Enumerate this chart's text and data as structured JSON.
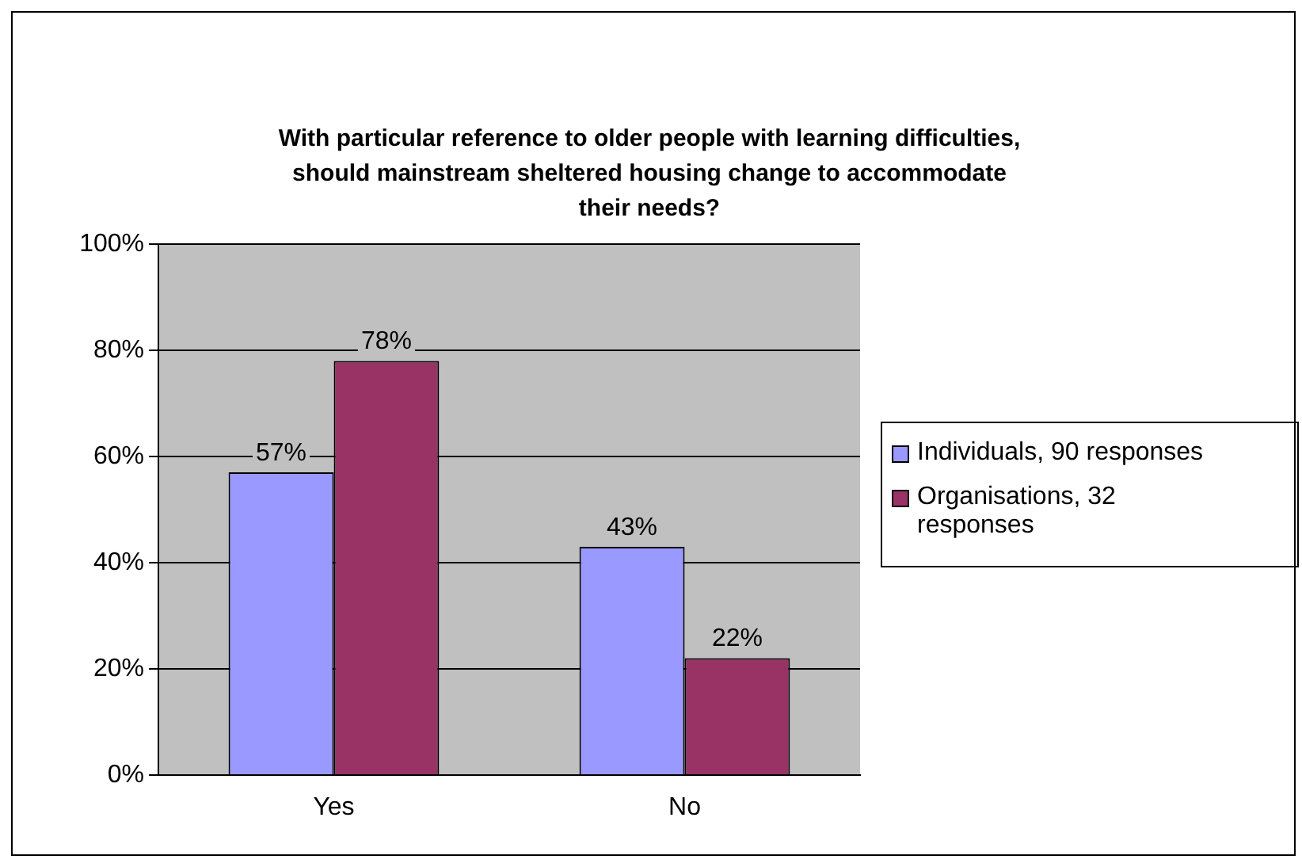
{
  "chart_data": {
    "type": "bar",
    "title": "With particular reference to older people with learning difficulties, should mainstream sheltered housing change to accommodate their needs?",
    "categories": [
      "Yes",
      "No"
    ],
    "series": [
      {
        "name": "Individuals, 90 responses",
        "color": "#9999ff",
        "values": [
          57,
          43
        ],
        "value_labels": [
          "57%",
          "43%"
        ]
      },
      {
        "name": "Organisations, 32 responses",
        "color": "#993366",
        "values": [
          78,
          22
        ],
        "value_labels": [
          "78%",
          "22%"
        ]
      }
    ],
    "ylim": [
      0,
      100
    ],
    "yticks": [
      {
        "value": 0,
        "label": "0%"
      },
      {
        "value": 20,
        "label": "20%"
      },
      {
        "value": 40,
        "label": "40%"
      },
      {
        "value": 60,
        "label": "60%"
      },
      {
        "value": 80,
        "label": "80%"
      },
      {
        "value": 100,
        "label": "100%"
      }
    ],
    "grid": "y",
    "legend": "right"
  }
}
